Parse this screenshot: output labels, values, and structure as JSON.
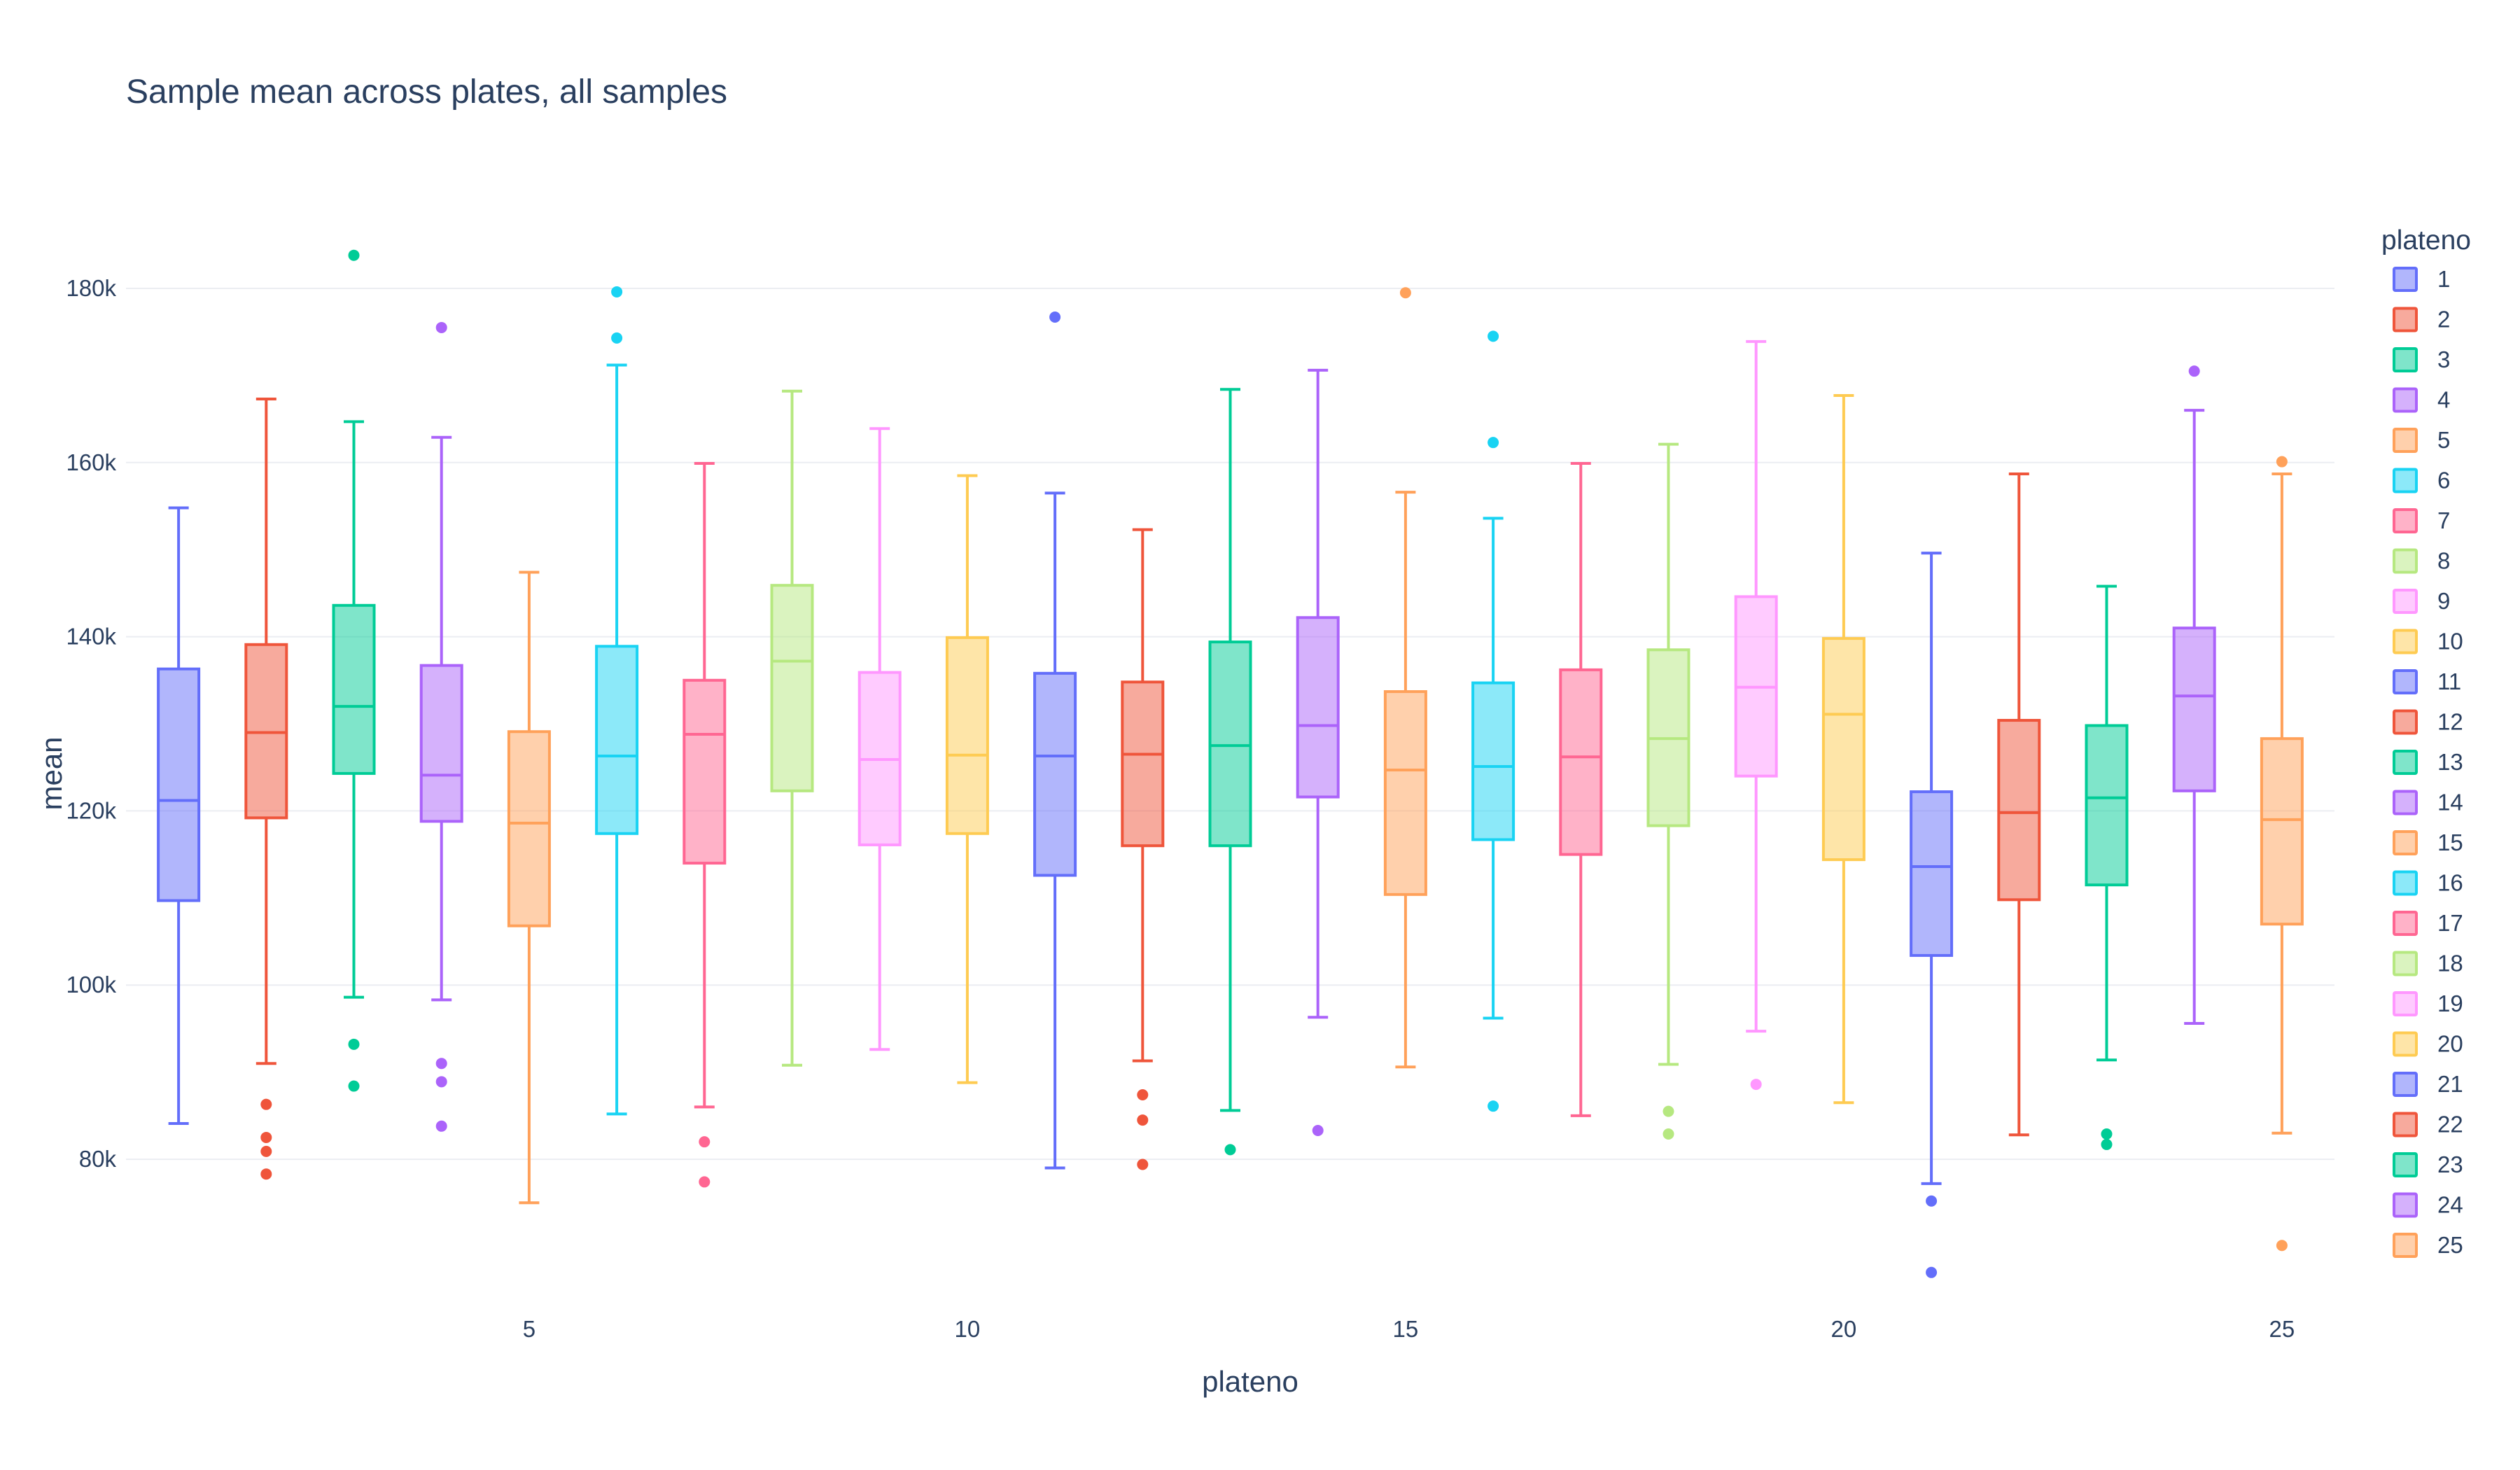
{
  "chart_data": {
    "type": "box",
    "title": "Sample mean across plates, all samples",
    "xlabel": "plateno",
    "ylabel": "mean",
    "x_ticks": [
      5,
      10,
      15,
      20,
      25
    ],
    "y_ticks": [
      80000,
      100000,
      120000,
      140000,
      160000,
      180000
    ],
    "y_tick_labels": [
      "80k",
      "100k",
      "120k",
      "140k",
      "160k",
      "180k"
    ],
    "xlim": [
      0.4,
      25.6
    ],
    "ylim": [
      62000,
      189000
    ],
    "grid": true,
    "legend": {
      "title": "plateno",
      "placement": "right"
    },
    "series": [
      {
        "name": "1",
        "color": "#636efa",
        "q1": 109700,
        "median": 121200,
        "q3": 136300,
        "lower": 84100,
        "upper": 154800,
        "outliers": []
      },
      {
        "name": "2",
        "color": "#EF553B",
        "q1": 119200,
        "median": 129000,
        "q3": 139100,
        "lower": 91000,
        "upper": 167300,
        "outliers": [
          86300,
          82500,
          80900,
          78300
        ]
      },
      {
        "name": "3",
        "color": "#00cc96",
        "q1": 124300,
        "median": 132000,
        "q3": 143600,
        "lower": 98600,
        "upper": 164700,
        "outliers": [
          183800,
          93200,
          88400
        ]
      },
      {
        "name": "4",
        "color": "#ab63fa",
        "q1": 118800,
        "median": 124100,
        "q3": 136700,
        "lower": 98300,
        "upper": 162900,
        "outliers": [
          175500,
          91000,
          88900,
          83800
        ]
      },
      {
        "name": "5",
        "color": "#FFA15A",
        "q1": 106800,
        "median": 118600,
        "q3": 129100,
        "lower": 75000,
        "upper": 147400,
        "outliers": []
      },
      {
        "name": "6",
        "color": "#19d3f3",
        "q1": 117400,
        "median": 126300,
        "q3": 138900,
        "lower": 85200,
        "upper": 171200,
        "outliers": [
          179600,
          174300
        ]
      },
      {
        "name": "7",
        "color": "#FF6692",
        "q1": 114000,
        "median": 128800,
        "q3": 135000,
        "lower": 86000,
        "upper": 159900,
        "outliers": [
          82000,
          77400
        ]
      },
      {
        "name": "8",
        "color": "#B6E880",
        "q1": 122300,
        "median": 137200,
        "q3": 145900,
        "lower": 90800,
        "upper": 168200,
        "outliers": []
      },
      {
        "name": "9",
        "color": "#FF97FF",
        "q1": 116100,
        "median": 125900,
        "q3": 135900,
        "lower": 92600,
        "upper": 163900,
        "outliers": []
      },
      {
        "name": "10",
        "color": "#FECB52",
        "q1": 117400,
        "median": 126400,
        "q3": 139900,
        "lower": 88800,
        "upper": 158500,
        "outliers": []
      },
      {
        "name": "11",
        "color": "#636efa",
        "q1": 112600,
        "median": 126300,
        "q3": 135800,
        "lower": 79000,
        "upper": 156500,
        "outliers": [
          176700
        ]
      },
      {
        "name": "12",
        "color": "#EF553B",
        "q1": 116000,
        "median": 126500,
        "q3": 134800,
        "lower": 91300,
        "upper": 152300,
        "outliers": [
          87400,
          84500,
          79400
        ]
      },
      {
        "name": "13",
        "color": "#00cc96",
        "q1": 116000,
        "median": 127500,
        "q3": 139400,
        "lower": 85600,
        "upper": 168400,
        "outliers": [
          81100
        ]
      },
      {
        "name": "14",
        "color": "#ab63fa",
        "q1": 121600,
        "median": 129800,
        "q3": 142200,
        "lower": 96300,
        "upper": 170600,
        "outliers": [
          83300
        ]
      },
      {
        "name": "15",
        "color": "#FFA15A",
        "q1": 110400,
        "median": 124700,
        "q3": 133700,
        "lower": 90600,
        "upper": 156600,
        "outliers": [
          179500
        ]
      },
      {
        "name": "16",
        "color": "#19d3f3",
        "q1": 116700,
        "median": 125100,
        "q3": 134700,
        "lower": 96200,
        "upper": 153600,
        "outliers": [
          174500,
          162300,
          86100
        ]
      },
      {
        "name": "17",
        "color": "#FF6692",
        "q1": 115000,
        "median": 126200,
        "q3": 136200,
        "lower": 85000,
        "upper": 159900,
        "outliers": []
      },
      {
        "name": "18",
        "color": "#B6E880",
        "q1": 118300,
        "median": 128300,
        "q3": 138500,
        "lower": 90900,
        "upper": 162100,
        "outliers": [
          85500,
          82900
        ]
      },
      {
        "name": "19",
        "color": "#FF97FF",
        "q1": 124000,
        "median": 134200,
        "q3": 144600,
        "lower": 94700,
        "upper": 173900,
        "outliers": [
          88600
        ]
      },
      {
        "name": "20",
        "color": "#FECB52",
        "q1": 114400,
        "median": 131100,
        "q3": 139800,
        "lower": 86500,
        "upper": 167700,
        "outliers": []
      },
      {
        "name": "21",
        "color": "#636efa",
        "q1": 103400,
        "median": 113600,
        "q3": 122200,
        "lower": 77200,
        "upper": 149600,
        "outliers": [
          75200,
          67000
        ]
      },
      {
        "name": "22",
        "color": "#EF553B",
        "q1": 109800,
        "median": 119800,
        "q3": 130400,
        "lower": 82800,
        "upper": 158700,
        "outliers": []
      },
      {
        "name": "23",
        "color": "#00cc96",
        "q1": 111500,
        "median": 121500,
        "q3": 129800,
        "lower": 91400,
        "upper": 145800,
        "outliers": [
          82900,
          81700
        ]
      },
      {
        "name": "24",
        "color": "#ab63fa",
        "q1": 122300,
        "median": 133200,
        "q3": 141000,
        "lower": 95600,
        "upper": 166000,
        "outliers": [
          170500
        ]
      },
      {
        "name": "25",
        "color": "#FFA15A",
        "q1": 107000,
        "median": 119000,
        "q3": 128300,
        "lower": 83000,
        "upper": 158700,
        "outliers": [
          160100,
          70100
        ]
      }
    ]
  }
}
